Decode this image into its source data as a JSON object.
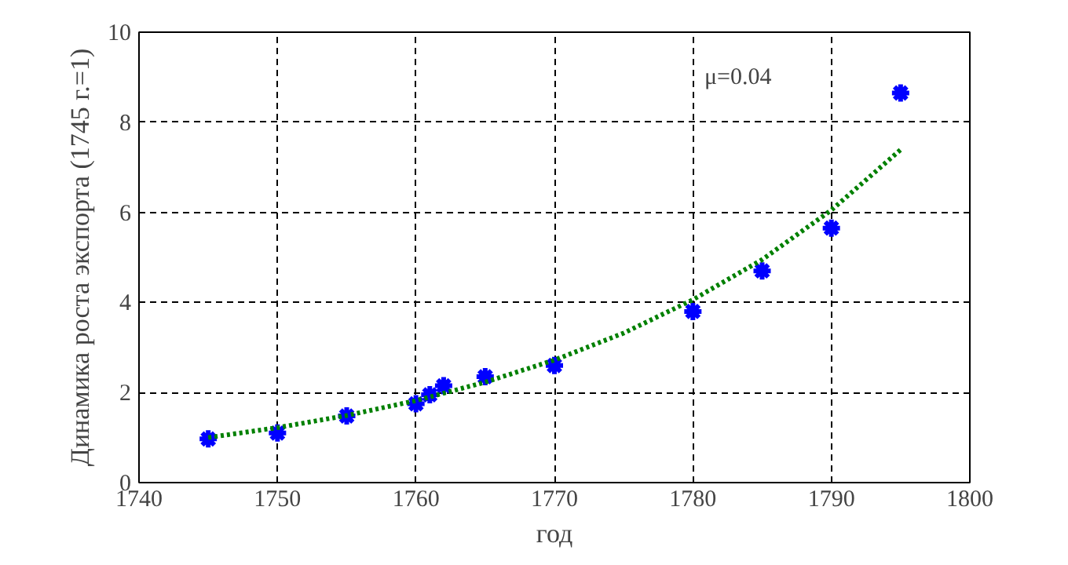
{
  "chart_data": {
    "type": "scatter",
    "xlabel": "год",
    "ylabel": "Динамика роста экспорта (1745 г.=1)",
    "x": [
      1745,
      1750,
      1755,
      1760,
      1761,
      1762,
      1765,
      1770,
      1780,
      1785,
      1790,
      1795
    ],
    "series": [
      {
        "color": "#0000ff",
        "marker": "cross",
        "values": [
          0.97,
          1.1,
          1.48,
          1.75,
          1.95,
          2.15,
          2.35,
          2.6,
          3.8,
          4.7,
          5.65,
          8.65
        ]
      },
      {
        "type": "line",
        "color": "#008000",
        "line_style": "dotted",
        "marker": "none",
        "x": [
          1745,
          1750,
          1755,
          1760,
          1765,
          1770,
          1775,
          1780,
          1785,
          1790,
          1795
        ],
        "values": [
          1.0,
          1.22,
          1.49,
          1.82,
          2.23,
          2.72,
          3.32,
          4.06,
          4.95,
          6.05,
          7.39
        ]
      }
    ],
    "annotations": [
      "μ=0.04"
    ],
    "xlim": [
      1740,
      1800
    ],
    "ylim": [
      0,
      10
    ],
    "xticks": [
      1740,
      1750,
      1760,
      1770,
      1780,
      1790,
      1800
    ],
    "yticks": [
      0,
      2,
      4,
      6,
      8,
      10
    ],
    "grid": true
  }
}
